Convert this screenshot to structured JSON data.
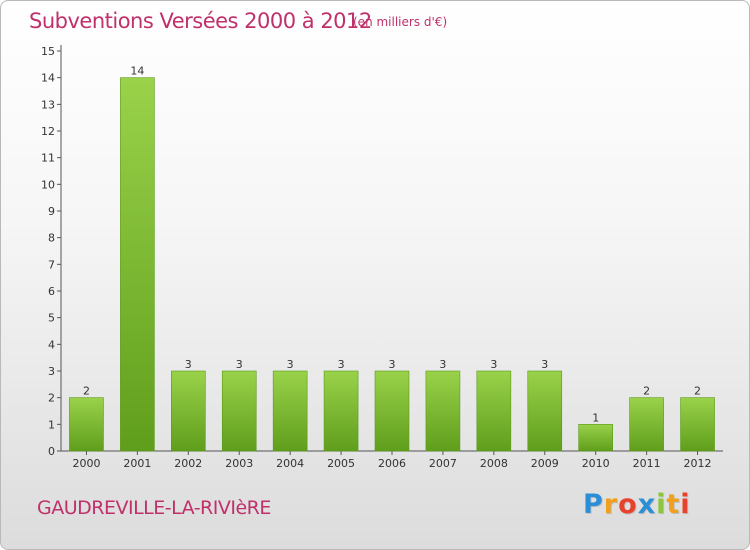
{
  "header": {
    "title": "Subventions Versées 2000 à 2012",
    "units": "(en milliers d'€)"
  },
  "footer": {
    "commune": "GAUDREVILLE-LA-RIVIèRE",
    "logo": {
      "letters": [
        "P",
        "r",
        "o",
        "x",
        "i",
        "t",
        "i"
      ],
      "colors": [
        "#2b8fd8",
        "#f0a01e",
        "#e8422c",
        "#2b8fd8",
        "#8cc63f",
        "#f0a01e",
        "#e8422c"
      ]
    }
  },
  "chart_data": {
    "type": "bar",
    "title": "Subventions Versées 2000 à 2012",
    "subtitle": "(en milliers d'€)",
    "xlabel": "",
    "ylabel": "",
    "categories": [
      "2000",
      "2001",
      "2002",
      "2003",
      "2004",
      "2005",
      "2006",
      "2007",
      "2008",
      "2009",
      "2010",
      "2011",
      "2012"
    ],
    "values": [
      2,
      14,
      3,
      3,
      3,
      3,
      3,
      3,
      3,
      3,
      1,
      2,
      2
    ],
    "ylim": [
      0,
      15
    ],
    "yticks": [
      "0",
      "1",
      "2",
      "3",
      "4",
      "5",
      "6",
      "7",
      "8",
      "9",
      "10",
      "11",
      "12",
      "13",
      "14",
      "15"
    ],
    "grid": false,
    "legend": "none",
    "bar_color": "#7cbf2c"
  }
}
